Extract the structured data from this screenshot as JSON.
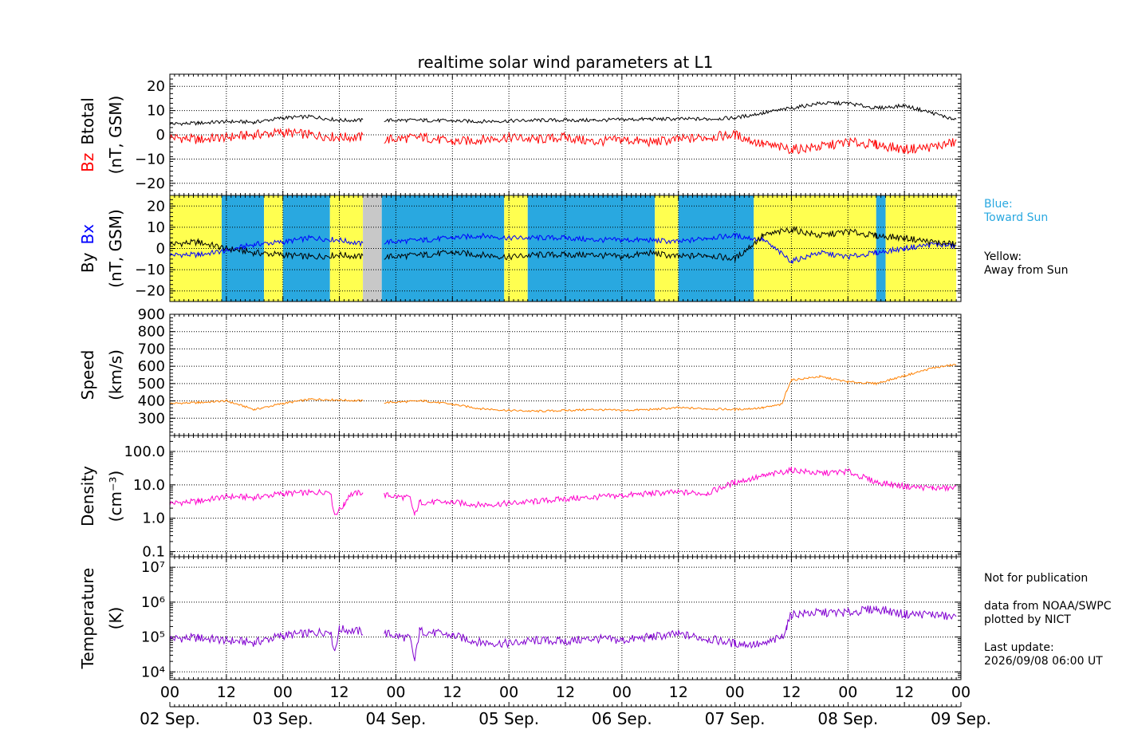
{
  "title": "realtime solar wind parameters at L1",
  "side_notes": {
    "blue_label": "Blue:",
    "blue_desc": "Toward Sun",
    "yellow_label": "Yellow:",
    "yellow_desc": "Away from Sun",
    "notice": "Not for publication",
    "source1": "data from NOAA/SWPC",
    "source2": "plotted by NICT",
    "update_label": "Last update:",
    "update_value": "2026/09/08 06:00 UT"
  },
  "colors": {
    "bz": "#ff0000",
    "btotal": "#000000",
    "bx": "#0000ff",
    "by": "#000000",
    "speed": "#ff8000",
    "density": "#ff00cc",
    "temperature": "#8000d0",
    "toward_sun": "#29a8e0",
    "away_from_sun": "#ffff50",
    "no_data": "#c8c8c8"
  },
  "chart_data": [
    {
      "type": "line",
      "panel": "Bz / Btotal",
      "title": "realtime solar wind parameters at L1",
      "ylabel_parts": [
        "Bz",
        "Btotal"
      ],
      "yunit": "(nT, GSM)",
      "ylim": [
        -25,
        25
      ],
      "yticks": [
        -20,
        -10,
        0,
        10,
        20
      ],
      "x_unit": "hours since 02 Sep. 00 UT",
      "grid": true,
      "series": [
        {
          "name": "Btotal",
          "points": [
            [
              0,
              4.5
            ],
            [
              6,
              4.8
            ],
            [
              12,
              5.5
            ],
            [
              18,
              5.2
            ],
            [
              24,
              7
            ],
            [
              30,
              7.5
            ],
            [
              36,
              6
            ],
            [
              41,
              6
            ],
            [
              42,
              null
            ],
            [
              45,
              null
            ],
            [
              45.5,
              6
            ],
            [
              54,
              6
            ],
            [
              66,
              5.5
            ],
            [
              78,
              6
            ],
            [
              90,
              6
            ],
            [
              102,
              6.5
            ],
            [
              114,
              6.5
            ],
            [
              120,
              7
            ],
            [
              126,
              9
            ],
            [
              132,
              11
            ],
            [
              138,
              13
            ],
            [
              144,
              13
            ],
            [
              150,
              11
            ],
            [
              156,
              12
            ],
            [
              162,
              9
            ],
            [
              167,
              6
            ]
          ]
        },
        {
          "name": "Bz",
          "points": [
            [
              0,
              -1
            ],
            [
              6,
              -2
            ],
            [
              12,
              -1
            ],
            [
              18,
              0
            ],
            [
              24,
              1
            ],
            [
              30,
              0
            ],
            [
              36,
              -1
            ],
            [
              41,
              -1
            ],
            [
              42,
              null
            ],
            [
              45,
              null
            ],
            [
              45.5,
              -2
            ],
            [
              54,
              -1
            ],
            [
              60,
              -3
            ],
            [
              66,
              -2
            ],
            [
              72,
              -1
            ],
            [
              78,
              -2
            ],
            [
              84,
              -1
            ],
            [
              90,
              -3
            ],
            [
              96,
              -2
            ],
            [
              102,
              -3
            ],
            [
              108,
              -2
            ],
            [
              114,
              -1
            ],
            [
              120,
              0
            ],
            [
              126,
              -4
            ],
            [
              132,
              -6
            ],
            [
              138,
              -5
            ],
            [
              144,
              -3
            ],
            [
              150,
              -4
            ],
            [
              156,
              -6
            ],
            [
              162,
              -5
            ],
            [
              167,
              -3
            ]
          ]
        }
      ]
    },
    {
      "type": "line",
      "panel": "By / Bx",
      "ylabel_parts": [
        "By",
        "Bx"
      ],
      "yunit": "(nT, GSM)",
      "ylim": [
        -25,
        25
      ],
      "yticks": [
        -20,
        -10,
        0,
        10,
        20
      ],
      "x_unit": "hours since 02 Sep. 00 UT",
      "grid": true,
      "sector_bands": [
        {
          "from": 0,
          "to": 11,
          "sector": "away"
        },
        {
          "from": 11,
          "to": 20,
          "sector": "toward"
        },
        {
          "from": 20,
          "to": 24,
          "sector": "away"
        },
        {
          "from": 24,
          "to": 34,
          "sector": "toward"
        },
        {
          "from": 34,
          "to": 41,
          "sector": "away"
        },
        {
          "from": 41,
          "to": 45,
          "sector": "none"
        },
        {
          "from": 45,
          "to": 71,
          "sector": "toward"
        },
        {
          "from": 71,
          "to": 76,
          "sector": "away"
        },
        {
          "from": 76,
          "to": 103,
          "sector": "toward"
        },
        {
          "from": 103,
          "to": 108,
          "sector": "away"
        },
        {
          "from": 108,
          "to": 124,
          "sector": "toward"
        },
        {
          "from": 124,
          "to": 150,
          "sector": "away"
        },
        {
          "from": 150,
          "to": 152,
          "sector": "toward"
        },
        {
          "from": 152,
          "to": 167,
          "sector": "away"
        }
      ],
      "series": [
        {
          "name": "Bx",
          "points": [
            [
              0,
              -3
            ],
            [
              6,
              -3
            ],
            [
              12,
              -1
            ],
            [
              18,
              2
            ],
            [
              24,
              3
            ],
            [
              30,
              5
            ],
            [
              36,
              4
            ],
            [
              41,
              2
            ],
            [
              42,
              null
            ],
            [
              45,
              null
            ],
            [
              45.5,
              3
            ],
            [
              54,
              4
            ],
            [
              60,
              5
            ],
            [
              66,
              6
            ],
            [
              72,
              5
            ],
            [
              78,
              5
            ],
            [
              84,
              5
            ],
            [
              90,
              4
            ],
            [
              96,
              4
            ],
            [
              102,
              4
            ],
            [
              108,
              3
            ],
            [
              114,
              5
            ],
            [
              120,
              6
            ],
            [
              126,
              4
            ],
            [
              132,
              -6
            ],
            [
              138,
              -2
            ],
            [
              144,
              -4
            ],
            [
              150,
              -2
            ],
            [
              156,
              0
            ],
            [
              162,
              2
            ],
            [
              167,
              1
            ]
          ]
        },
        {
          "name": "By",
          "points": [
            [
              0,
              2
            ],
            [
              6,
              3
            ],
            [
              12,
              0
            ],
            [
              18,
              -2
            ],
            [
              24,
              -3
            ],
            [
              30,
              -4
            ],
            [
              36,
              -3
            ],
            [
              41,
              -4
            ],
            [
              42,
              null
            ],
            [
              45,
              null
            ],
            [
              45.5,
              -4
            ],
            [
              54,
              -3
            ],
            [
              60,
              -2
            ],
            [
              66,
              -3
            ],
            [
              72,
              -4
            ],
            [
              78,
              -3
            ],
            [
              84,
              -3
            ],
            [
              90,
              -3
            ],
            [
              96,
              -4
            ],
            [
              102,
              -2
            ],
            [
              108,
              -4
            ],
            [
              114,
              -3
            ],
            [
              120,
              -5
            ],
            [
              126,
              6
            ],
            [
              132,
              9
            ],
            [
              138,
              6
            ],
            [
              144,
              8
            ],
            [
              150,
              6
            ],
            [
              156,
              5
            ],
            [
              162,
              3
            ],
            [
              167,
              2
            ]
          ]
        }
      ]
    },
    {
      "type": "line",
      "panel": "Speed",
      "ylabel": "Speed",
      "yunit": "(km/s)",
      "ylim": [
        200,
        900
      ],
      "yticks": [
        300,
        400,
        500,
        600,
        700,
        800,
        900
      ],
      "x_unit": "hours since 02 Sep. 00 UT",
      "grid": true,
      "series": [
        {
          "name": "Speed",
          "points": [
            [
              0,
              385
            ],
            [
              6,
              390
            ],
            [
              12,
              400
            ],
            [
              18,
              350
            ],
            [
              24,
              385
            ],
            [
              30,
              410
            ],
            [
              36,
              405
            ],
            [
              41,
              400
            ],
            [
              42,
              null
            ],
            [
              45,
              null
            ],
            [
              45.5,
              390
            ],
            [
              54,
              400
            ],
            [
              60,
              380
            ],
            [
              66,
              355
            ],
            [
              72,
              345
            ],
            [
              78,
              340
            ],
            [
              84,
              345
            ],
            [
              90,
              350
            ],
            [
              96,
              345
            ],
            [
              102,
              350
            ],
            [
              108,
              360
            ],
            [
              114,
              355
            ],
            [
              120,
              350
            ],
            [
              126,
              360
            ],
            [
              130,
              380
            ],
            [
              131,
              460
            ],
            [
              132,
              520
            ],
            [
              138,
              540
            ],
            [
              144,
              510
            ],
            [
              150,
              500
            ],
            [
              156,
              545
            ],
            [
              162,
              590
            ],
            [
              167,
              610
            ]
          ]
        }
      ]
    },
    {
      "type": "line",
      "panel": "Density",
      "ylabel": "Density",
      "yunit": "(cm⁻³)",
      "yscale": "log",
      "ylim": [
        0.07,
        300
      ],
      "yticks": [
        0.1,
        1.0,
        10.0,
        100.0
      ],
      "ytick_labels": [
        "0.1",
        "1.0",
        "10.0",
        "100.0"
      ],
      "x_unit": "hours since 02 Sep. 00 UT",
      "grid": true,
      "series": [
        {
          "name": "Density",
          "points": [
            [
              0,
              2.8
            ],
            [
              6,
              3.2
            ],
            [
              12,
              4.5
            ],
            [
              18,
              4.2
            ],
            [
              24,
              5.5
            ],
            [
              30,
              5.8
            ],
            [
              34,
              6.5
            ],
            [
              35,
              1.3
            ],
            [
              37,
              2.5
            ],
            [
              38,
              5
            ],
            [
              41,
              6
            ],
            [
              42,
              null
            ],
            [
              45,
              null
            ],
            [
              45.5,
              5
            ],
            [
              51,
              4
            ],
            [
              52,
              1.2
            ],
            [
              53,
              3
            ],
            [
              60,
              3
            ],
            [
              66,
              2.5
            ],
            [
              72,
              2.8
            ],
            [
              78,
              3.2
            ],
            [
              84,
              3.8
            ],
            [
              90,
              4.2
            ],
            [
              96,
              4.8
            ],
            [
              102,
              5.5
            ],
            [
              108,
              6
            ],
            [
              114,
              5.5
            ],
            [
              120,
              12
            ],
            [
              126,
              18
            ],
            [
              132,
              28
            ],
            [
              138,
              22
            ],
            [
              144,
              25
            ],
            [
              150,
              12
            ],
            [
              156,
              9
            ],
            [
              162,
              8
            ],
            [
              167,
              8
            ]
          ]
        }
      ]
    },
    {
      "type": "line",
      "panel": "Temperature",
      "ylabel": "Temperature",
      "yunit": "(K)",
      "yscale": "log",
      "ylim": [
        6000,
        20000000
      ],
      "yticks": [
        10000,
        100000,
        1000000,
        10000000
      ],
      "ytick_labels": [
        "10⁴",
        "10⁵",
        "10⁶",
        "10⁷"
      ],
      "x_unit": "hours since 02 Sep. 00 UT",
      "grid": true,
      "series": [
        {
          "name": "Temperature",
          "points": [
            [
              0,
              90000
            ],
            [
              6,
              95000
            ],
            [
              12,
              80000
            ],
            [
              18,
              70000
            ],
            [
              24,
              110000
            ],
            [
              30,
              130000
            ],
            [
              34,
              150000
            ],
            [
              35,
              40000
            ],
            [
              36,
              170000
            ],
            [
              41,
              140000
            ],
            [
              42,
              null
            ],
            [
              45,
              null
            ],
            [
              45.5,
              130000
            ],
            [
              51,
              90000
            ],
            [
              52,
              20000
            ],
            [
              53,
              150000
            ],
            [
              60,
              110000
            ],
            [
              66,
              70000
            ],
            [
              72,
              65000
            ],
            [
              78,
              80000
            ],
            [
              84,
              75000
            ],
            [
              90,
              90000
            ],
            [
              96,
              80000
            ],
            [
              102,
              100000
            ],
            [
              108,
              120000
            ],
            [
              114,
              90000
            ],
            [
              120,
              65000
            ],
            [
              126,
              60000
            ],
            [
              130,
              100000
            ],
            [
              131,
              200000
            ],
            [
              132,
              450000
            ],
            [
              138,
              500000
            ],
            [
              144,
              500000
            ],
            [
              150,
              650000
            ],
            [
              156,
              450000
            ],
            [
              162,
              450000
            ],
            [
              167,
              350000
            ]
          ]
        }
      ]
    }
  ],
  "x_axis": {
    "range_hours": [
      0,
      168
    ],
    "hour_ticks": [
      "00",
      "12",
      "00",
      "12",
      "00",
      "12",
      "00",
      "12",
      "00",
      "12",
      "00",
      "12",
      "00",
      "12",
      "00"
    ],
    "day_labels": [
      "02 Sep.",
      "03 Sep.",
      "04 Sep.",
      "05 Sep.",
      "06 Sep.",
      "07 Sep.",
      "08 Sep.",
      "09 Sep."
    ]
  }
}
